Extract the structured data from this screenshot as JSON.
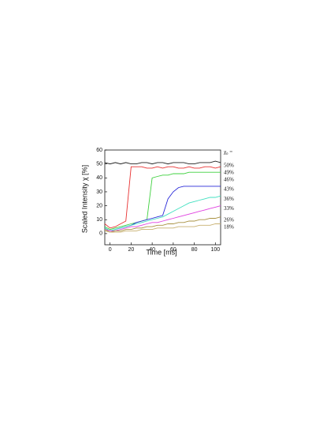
{
  "chart_data": {
    "type": "line",
    "x_label": "Time [ms]",
    "y_label": "Scaled Intensity χ [%]",
    "legend_title": "χ₀ =",
    "x": [
      -5,
      0,
      5,
      10,
      15,
      20,
      25,
      30,
      35,
      40,
      45,
      50,
      55,
      60,
      65,
      70,
      75,
      80,
      85,
      90,
      95,
      100,
      105
    ],
    "xlim": [
      -5,
      105
    ],
    "xticks": [
      0,
      20,
      40,
      60,
      80,
      100
    ],
    "ylim": [
      -8,
      60
    ],
    "yticks": [
      0,
      10,
      20,
      30,
      40,
      50,
      60
    ],
    "series": [
      {
        "name": "50%",
        "color": "#222222",
        "values": [
          51,
          50,
          51,
          50,
          51,
          50,
          50,
          51,
          51,
          50,
          51,
          51,
          50,
          51,
          51,
          51,
          50,
          50,
          51,
          51,
          51,
          52,
          51
        ]
      },
      {
        "name": "49%",
        "color": "#e83030",
        "values": [
          7,
          4,
          5,
          7,
          9,
          48,
          48,
          48,
          47,
          47,
          48,
          47,
          48,
          48,
          47,
          47,
          48,
          47,
          47,
          48,
          48,
          47,
          48
        ]
      },
      {
        "name": "46%",
        "color": "#3ed03e",
        "values": [
          5,
          3,
          4,
          5,
          6,
          7,
          8,
          9,
          10,
          40,
          41,
          42,
          42,
          43,
          43,
          43,
          44,
          44,
          44,
          44,
          44,
          44,
          44
        ]
      },
      {
        "name": "43%",
        "color": "#2828d8",
        "values": [
          4,
          2,
          3,
          4,
          5,
          6,
          8,
          9,
          10,
          11,
          12,
          13,
          25,
          30,
          33,
          34,
          34,
          34,
          34,
          34,
          34,
          34,
          34
        ]
      },
      {
        "name": "36%",
        "color": "#40e0c0",
        "values": [
          4,
          2,
          3,
          4,
          5,
          6,
          7,
          8,
          9,
          10,
          11,
          12,
          14,
          16,
          18,
          20,
          22,
          23,
          24,
          25,
          26,
          26,
          27
        ]
      },
      {
        "name": "33%",
        "color": "#e040e0",
        "values": [
          3,
          2,
          2,
          3,
          4,
          5,
          5,
          6,
          7,
          8,
          8,
          9,
          10,
          11,
          12,
          13,
          14,
          15,
          16,
          17,
          18,
          19,
          20
        ]
      },
      {
        "name": "26%",
        "color": "#a89040",
        "values": [
          3,
          1,
          2,
          2,
          3,
          3,
          4,
          4,
          5,
          5,
          6,
          6,
          7,
          7,
          8,
          8,
          9,
          9,
          10,
          10,
          11,
          11,
          12
        ]
      },
      {
        "name": "18%",
        "color": "#c8b070",
        "values": [
          2,
          1,
          1,
          1,
          2,
          2,
          2,
          3,
          3,
          3,
          4,
          4,
          4,
          4,
          5,
          5,
          5,
          5,
          6,
          6,
          6,
          7,
          7
        ]
      }
    ]
  }
}
